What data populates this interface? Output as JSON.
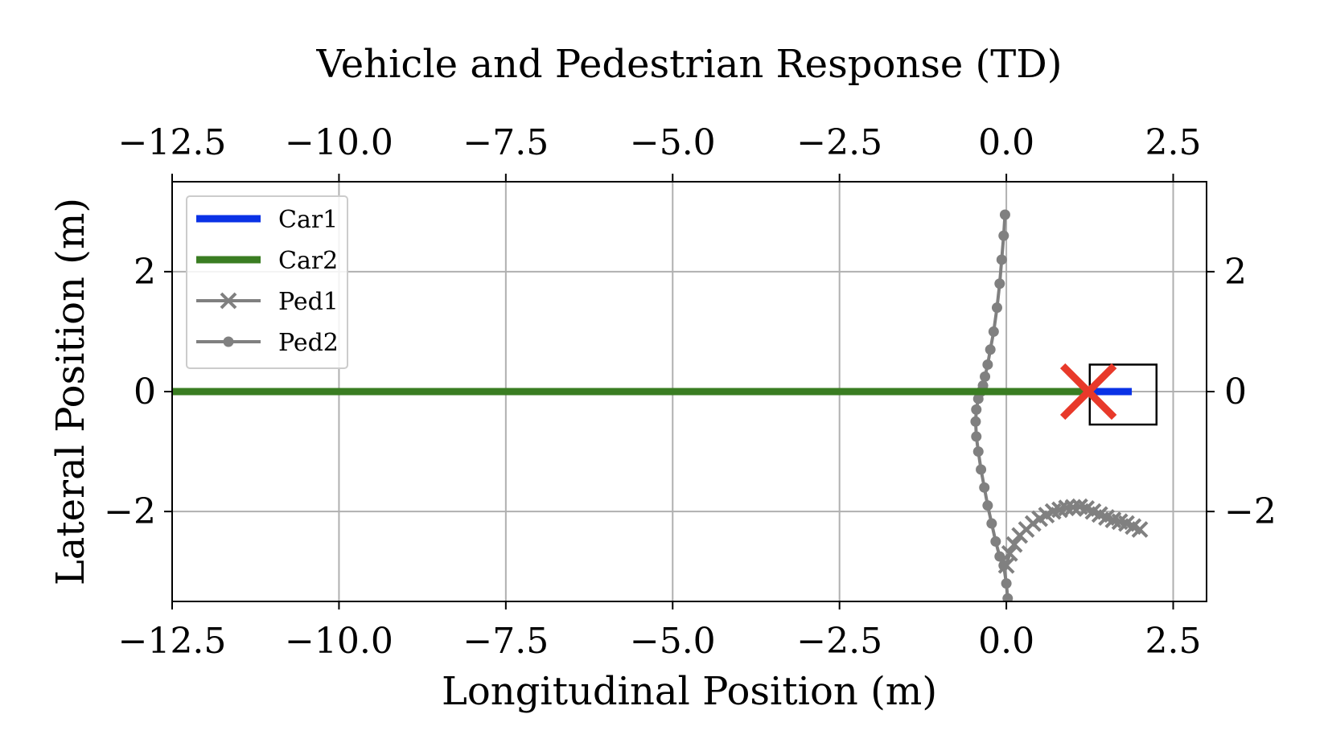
{
  "chart_data": {
    "type": "line",
    "title": "Vehicle and Pedestrian Response (TD)",
    "xlabel": "Longitudinal Position (m)",
    "ylabel": "Lateral Position (m)",
    "xlim": [
      -12.5,
      3.0
    ],
    "ylim": [
      -3.5,
      3.5
    ],
    "xticks": [
      -12.5,
      -10.0,
      -7.5,
      -5.0,
      -2.5,
      0.0,
      2.5
    ],
    "xtick_labels": [
      "−12.5",
      "−10.0",
      "−7.5",
      "−5.0",
      "−2.5",
      "0.0",
      "2.5"
    ],
    "yticks": [
      -2,
      0,
      2
    ],
    "ytick_labels": [
      "−2",
      "0",
      "2"
    ],
    "grid": true,
    "legend_position": "top-left",
    "colors": {
      "car1": "#0a32e6",
      "car2": "#3a7d22",
      "ped": "#808080",
      "collision": "#e8392a"
    },
    "legend": [
      {
        "name": "Car1",
        "color": "#0a32e6",
        "marker": "none"
      },
      {
        "name": "Car2",
        "color": "#3a7d22",
        "marker": "none"
      },
      {
        "name": "Ped1",
        "color": "#808080",
        "marker": "x"
      },
      {
        "name": "Ped2",
        "color": "#808080",
        "marker": "o"
      }
    ],
    "series": [
      {
        "name": "Car1",
        "x": [
          1.3,
          1.88
        ],
        "y": [
          0,
          0
        ]
      },
      {
        "name": "Car2",
        "x": [
          -12.5,
          1.25
        ],
        "y": [
          0,
          0
        ]
      },
      {
        "name": "Ped1",
        "x": [
          0.0,
          0.05,
          0.12,
          0.2,
          0.3,
          0.4,
          0.5,
          0.6,
          0.7,
          0.8,
          0.9,
          1.0,
          1.1,
          1.2,
          1.3,
          1.4,
          1.5,
          1.6,
          1.7,
          1.8,
          1.9,
          2.0
        ],
        "y": [
          -2.9,
          -2.7,
          -2.55,
          -2.4,
          -2.3,
          -2.2,
          -2.12,
          -2.06,
          -2.0,
          -1.97,
          -1.94,
          -1.93,
          -1.92,
          -1.95,
          -2.0,
          -2.05,
          -2.1,
          -2.14,
          -2.17,
          -2.2,
          -2.25,
          -2.3
        ]
      },
      {
        "name": "Ped2",
        "x": [
          -0.02,
          -0.04,
          -0.07,
          -0.1,
          -0.14,
          -0.19,
          -0.24,
          -0.28,
          -0.32,
          -0.35,
          -0.38,
          -0.42,
          -0.45,
          -0.46,
          -0.45,
          -0.42,
          -0.38,
          -0.33,
          -0.28,
          -0.22,
          -0.16,
          -0.1,
          -0.04,
          0.0,
          0.02
        ],
        "y": [
          2.95,
          2.6,
          2.2,
          1.8,
          1.4,
          1.0,
          0.7,
          0.45,
          0.25,
          0.1,
          0.0,
          -0.12,
          -0.3,
          -0.5,
          -0.75,
          -1.0,
          -1.3,
          -1.6,
          -1.9,
          -2.2,
          -2.5,
          -2.75,
          -2.9,
          -3.2,
          -3.45
        ]
      }
    ],
    "collision_marker": {
      "x": 1.23,
      "y": 0
    },
    "vehicle_box": {
      "x": [
        1.25,
        2.25
      ],
      "y": [
        -0.55,
        0.45
      ]
    }
  }
}
